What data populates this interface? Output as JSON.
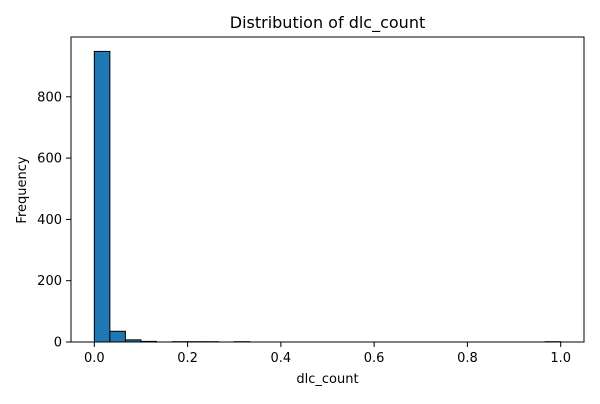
{
  "chart_data": {
    "type": "bar",
    "title": "Distribution of dlc_count",
    "xlabel": "dlc_count",
    "ylabel": "Frequency",
    "xlim": [
      -0.05,
      1.05
    ],
    "ylim": [
      0,
      995
    ],
    "x_ticks": [
      0.0,
      0.2,
      0.4,
      0.6,
      0.8,
      1.0
    ],
    "x_tick_labels": [
      "0.0",
      "0.2",
      "0.4",
      "0.6",
      "0.8",
      "1.0"
    ],
    "y_ticks": [
      0,
      200,
      400,
      600,
      800
    ],
    "y_tick_labels": [
      "0",
      "200",
      "400",
      "600",
      "800"
    ],
    "bins": {
      "start": 0.0,
      "end": 1.0,
      "count": 30
    },
    "values": [
      948,
      35,
      7,
      2,
      0,
      1,
      1,
      1,
      0,
      1,
      0,
      0,
      0,
      0,
      0,
      0,
      0,
      0,
      0,
      0,
      0,
      0,
      0,
      0,
      0,
      0,
      0,
      0,
      0,
      1
    ],
    "grid": false,
    "legend": "none",
    "colors": {
      "bar_fill": "#1f77b4",
      "bar_edge": "#000000",
      "axes": "#000000",
      "background": "#ffffff"
    }
  }
}
